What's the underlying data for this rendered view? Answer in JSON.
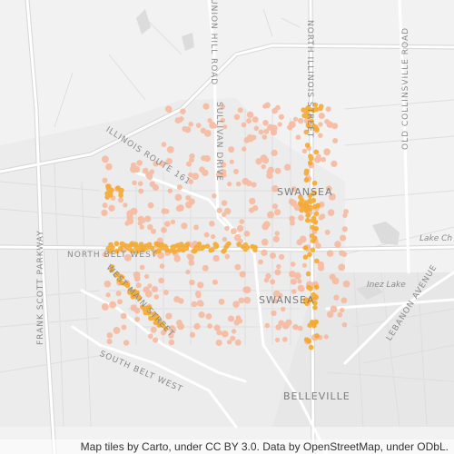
{
  "map": {
    "labels": {
      "illinois_route_161": "ILLINOIS ROUTE 161",
      "sullivan_drive": "SULLIVAN DRIVE",
      "union_hill_road": "UNION HILL ROAD",
      "north_illinois_street": "NORTH ILLINOIS STREET",
      "old_collinsville_road": "OLD COLLINSVILLE ROAD",
      "frank_scott_parkway": "FRANK SCOTT PARKWAY",
      "north_belt_west": "NORTH BELT WEST",
      "west_main_street": "WEST MAIN STREET",
      "south_belt_west": "SOUTH BELT WEST",
      "lebanon_avenue": "LEBANON AVENUE",
      "inez_lake": "Inez Lake",
      "lake_christine": "Lake Ch"
    },
    "places": {
      "swansea_north": "SWANSEA",
      "swansea_south": "SWANSEA",
      "belleville": "BELLEVILLE"
    },
    "colors": {
      "background": "#f2f2f2",
      "road": "#ffffff",
      "road_outline": "#d6d6d6",
      "urban": "#e9e9e9",
      "marker_light": "#f7b69a",
      "marker_dense": "#f5a623"
    },
    "attribution": "Map tiles by Carto, under CC BY 3.0. Data by OpenStreetMap, under ODbL."
  }
}
